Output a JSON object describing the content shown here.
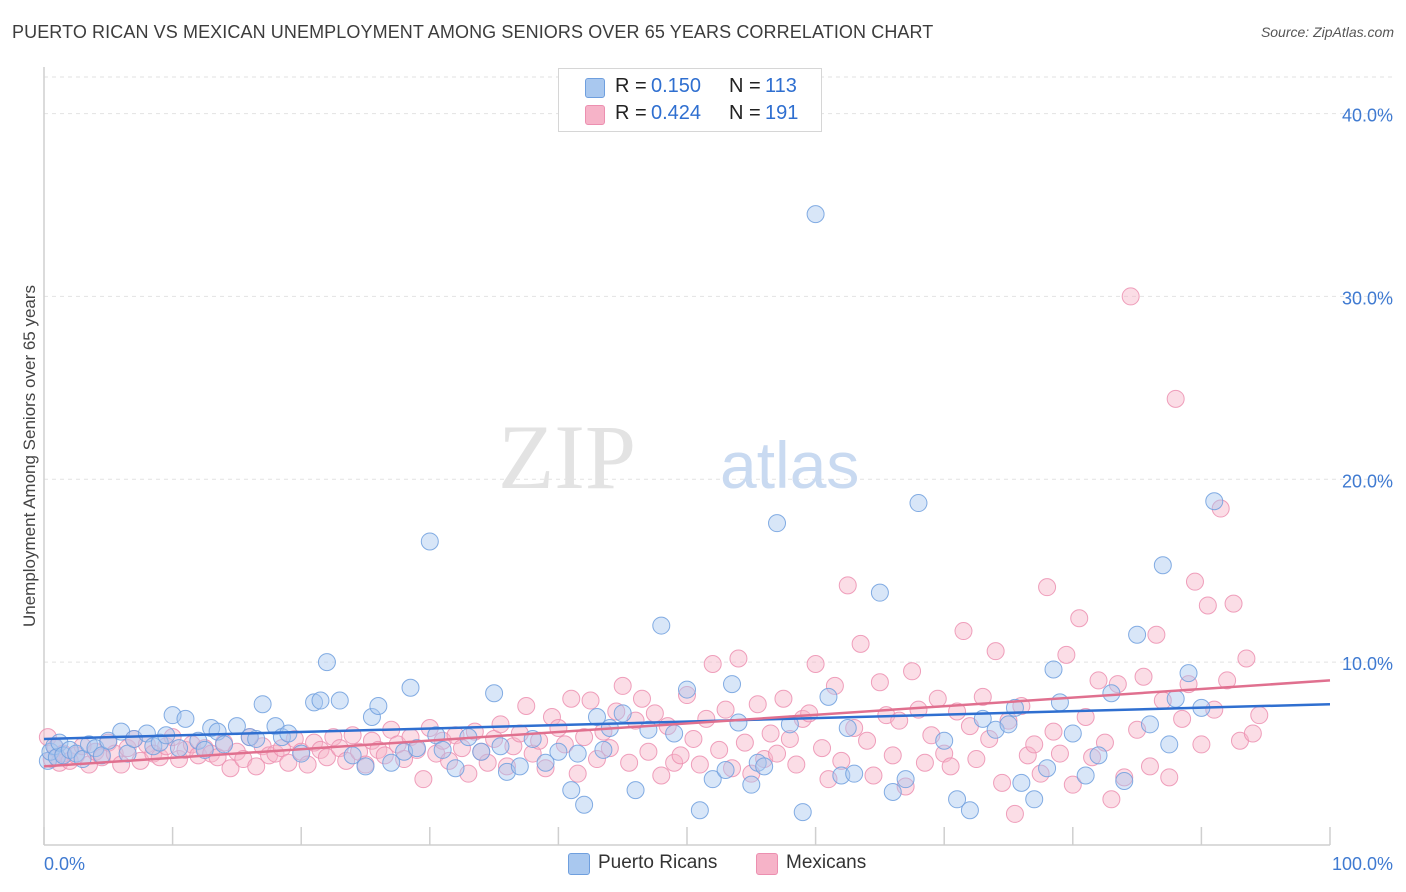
{
  "header": {
    "title": "PUERTO RICAN VS MEXICAN UNEMPLOYMENT AMONG SENIORS OVER 65 YEARS CORRELATION CHART",
    "source": "Source: ZipAtlas.com"
  },
  "watermark": {
    "zip": "ZIP",
    "atlas": "atlas"
  },
  "legend": {
    "rows": [
      {
        "r_label": "R =",
        "r_value": "0.150",
        "n_label": "N =",
        "n_value": "113"
      },
      {
        "r_label": "R =",
        "r_value": "0.424",
        "n_label": "N =",
        "n_value": "191"
      }
    ]
  },
  "bottom_legend": {
    "series0": "Puerto Ricans",
    "series1": "Mexicans"
  },
  "colors": {
    "blue_fill": "#a9c8ef",
    "blue_stroke": "#6f9fde",
    "blue_line": "#2f6fd0",
    "pink_fill": "#f6b3c8",
    "pink_stroke": "#ec8fb0",
    "pink_line": "#e0708f",
    "axis_label": "#3f7ad1",
    "grid": "#e2e2e2"
  },
  "chart_data": {
    "type": "scatter",
    "title": "PUERTO RICAN VS MEXICAN UNEMPLOYMENT AMONG SENIORS OVER 65 YEARS CORRELATION CHART",
    "xlabel": "",
    "ylabel": "Unemployment Among Seniors over 65 years",
    "xlim": [
      0,
      100
    ],
    "ylim": [
      0,
      42
    ],
    "x_tick_labels": [
      "0.0%",
      "100.0%"
    ],
    "y_ticks": [
      10,
      20,
      30,
      40
    ],
    "y_tick_labels": [
      "10.0%",
      "20.0%",
      "30.0%",
      "40.0%"
    ],
    "grid": true,
    "legend_position": "top-center",
    "series": [
      {
        "name": "Puerto Ricans",
        "R": 0.15,
        "N": 113,
        "trend": [
          [
            0,
            5.8
          ],
          [
            100,
            7.7
          ]
        ],
        "points": [
          [
            0.3,
            4.6
          ],
          [
            0.5,
            5.1
          ],
          [
            0.8,
            5.4
          ],
          [
            1,
            4.8
          ],
          [
            1.2,
            5.6
          ],
          [
            1.5,
            4.9
          ],
          [
            2,
            5.2
          ],
          [
            2.5,
            5.0
          ],
          [
            3,
            4.7
          ],
          [
            3.5,
            5.5
          ],
          [
            4,
            5.3
          ],
          [
            4.5,
            4.9
          ],
          [
            5,
            5.7
          ],
          [
            6,
            6.2
          ],
          [
            6.5,
            5.0
          ],
          [
            7,
            5.8
          ],
          [
            8,
            6.1
          ],
          [
            8.5,
            5.4
          ],
          [
            9,
            5.6
          ],
          [
            9.5,
            6.0
          ],
          [
            10,
            7.1
          ],
          [
            10.5,
            5.3
          ],
          [
            11,
            6.9
          ],
          [
            12,
            5.7
          ],
          [
            12.5,
            5.2
          ],
          [
            13,
            6.4
          ],
          [
            13.5,
            6.2
          ],
          [
            14,
            5.5
          ],
          [
            15,
            6.5
          ],
          [
            16,
            5.9
          ],
          [
            16.5,
            5.8
          ],
          [
            17,
            7.7
          ],
          [
            18,
            6.5
          ],
          [
            18.5,
            5.9
          ],
          [
            19,
            6.1
          ],
          [
            20,
            5.0
          ],
          [
            21,
            7.8
          ],
          [
            21.5,
            7.9
          ],
          [
            22,
            10.0
          ],
          [
            23,
            7.9
          ],
          [
            24,
            4.9
          ],
          [
            25,
            4.3
          ],
          [
            25.5,
            7.0
          ],
          [
            26,
            7.6
          ],
          [
            27,
            4.5
          ],
          [
            28,
            5.1
          ],
          [
            28.5,
            8.6
          ],
          [
            29,
            5.3
          ],
          [
            30,
            16.6
          ],
          [
            30.5,
            6.0
          ],
          [
            31,
            5.2
          ],
          [
            32,
            4.2
          ],
          [
            33,
            5.9
          ],
          [
            34,
            5.1
          ],
          [
            35,
            8.3
          ],
          [
            35.5,
            5.4
          ],
          [
            36,
            4.0
          ],
          [
            37,
            4.3
          ],
          [
            38,
            5.8
          ],
          [
            39,
            4.5
          ],
          [
            40,
            5.1
          ],
          [
            41,
            3.0
          ],
          [
            41.5,
            5.0
          ],
          [
            42,
            2.2
          ],
          [
            43,
            7.0
          ],
          [
            43.5,
            5.2
          ],
          [
            44,
            6.4
          ],
          [
            45,
            7.2
          ],
          [
            46,
            3.0
          ],
          [
            47,
            6.3
          ],
          [
            48,
            12.0
          ],
          [
            49,
            6.1
          ],
          [
            50,
            8.5
          ],
          [
            51,
            1.9
          ],
          [
            52,
            3.6
          ],
          [
            53,
            4.1
          ],
          [
            53.5,
            8.8
          ],
          [
            54,
            6.7
          ],
          [
            55,
            3.3
          ],
          [
            55.5,
            4.5
          ],
          [
            56,
            4.3
          ],
          [
            57,
            17.6
          ],
          [
            58,
            6.6
          ],
          [
            59,
            1.8
          ],
          [
            60,
            34.5
          ],
          [
            61,
            8.1
          ],
          [
            62,
            3.8
          ],
          [
            62.5,
            6.4
          ],
          [
            63,
            3.9
          ],
          [
            65,
            13.8
          ],
          [
            66,
            2.9
          ],
          [
            67,
            3.6
          ],
          [
            68,
            18.7
          ],
          [
            70,
            5.7
          ],
          [
            71,
            2.5
          ],
          [
            72,
            1.9
          ],
          [
            73,
            6.9
          ],
          [
            74,
            6.3
          ],
          [
            75,
            6.6
          ],
          [
            75.5,
            7.5
          ],
          [
            76,
            3.4
          ],
          [
            77,
            2.5
          ],
          [
            78,
            4.2
          ],
          [
            78.5,
            9.6
          ],
          [
            79,
            7.8
          ],
          [
            80,
            6.1
          ],
          [
            81,
            3.8
          ],
          [
            82,
            4.9
          ],
          [
            83,
            8.3
          ],
          [
            84,
            3.5
          ],
          [
            85,
            11.5
          ],
          [
            86,
            6.6
          ],
          [
            87,
            15.3
          ],
          [
            87.5,
            5.5
          ],
          [
            88,
            8.0
          ],
          [
            89,
            9.4
          ],
          [
            90,
            7.5
          ],
          [
            91,
            18.8
          ]
        ]
      },
      {
        "name": "Mexicans",
        "R": 0.424,
        "N": 191,
        "trend": [
          [
            0,
            4.3
          ],
          [
            100,
            9.0
          ]
        ],
        "points": [
          [
            0.3,
            5.9
          ],
          [
            0.6,
            4.7
          ],
          [
            0.9,
            5.3
          ],
          [
            1.2,
            4.5
          ],
          [
            1.5,
            5.0
          ],
          [
            2,
            4.6
          ],
          [
            2.5,
            4.9
          ],
          [
            3,
            5.4
          ],
          [
            3.5,
            4.4
          ],
          [
            4,
            5.1
          ],
          [
            4.5,
            4.8
          ],
          [
            5,
            5.6
          ],
          [
            5.5,
            5.0
          ],
          [
            6,
            4.4
          ],
          [
            6.5,
            5.3
          ],
          [
            7,
            5.8
          ],
          [
            7.5,
            4.6
          ],
          [
            8,
            5.5
          ],
          [
            8.5,
            5.0
          ],
          [
            9,
            4.8
          ],
          [
            9.5,
            5.4
          ],
          [
            10,
            5.9
          ],
          [
            10.5,
            4.7
          ],
          [
            11,
            5.2
          ],
          [
            11.5,
            5.5
          ],
          [
            12,
            4.9
          ],
          [
            12.5,
            5.3
          ],
          [
            13,
            5.0
          ],
          [
            13.5,
            4.8
          ],
          [
            14,
            5.6
          ],
          [
            14.5,
            4.2
          ],
          [
            15,
            5.1
          ],
          [
            15.5,
            4.7
          ],
          [
            16,
            5.9
          ],
          [
            16.5,
            4.3
          ],
          [
            17,
            5.4
          ],
          [
            17.5,
            4.9
          ],
          [
            18,
            5.0
          ],
          [
            18.5,
            5.3
          ],
          [
            19,
            4.5
          ],
          [
            19.5,
            5.8
          ],
          [
            20,
            5.1
          ],
          [
            20.5,
            4.4
          ],
          [
            21,
            5.6
          ],
          [
            21.5,
            5.2
          ],
          [
            22,
            4.8
          ],
          [
            22.5,
            5.9
          ],
          [
            23,
            5.3
          ],
          [
            23.5,
            4.6
          ],
          [
            24,
            6.0
          ],
          [
            24.5,
            5.1
          ],
          [
            25,
            4.4
          ],
          [
            25.5,
            5.7
          ],
          [
            26,
            5.2
          ],
          [
            26.5,
            4.9
          ],
          [
            27,
            6.3
          ],
          [
            27.5,
            5.5
          ],
          [
            28,
            4.7
          ],
          [
            28.5,
            5.9
          ],
          [
            29,
            5.2
          ],
          [
            29.5,
            3.6
          ],
          [
            30,
            6.4
          ],
          [
            30.5,
            5.0
          ],
          [
            31,
            5.7
          ],
          [
            31.5,
            4.6
          ],
          [
            32,
            6.0
          ],
          [
            32.5,
            5.3
          ],
          [
            33,
            3.9
          ],
          [
            33.5,
            6.2
          ],
          [
            34,
            5.1
          ],
          [
            34.5,
            4.5
          ],
          [
            35,
            5.8
          ],
          [
            35.5,
            6.6
          ],
          [
            36,
            4.3
          ],
          [
            36.5,
            5.4
          ],
          [
            37,
            6.1
          ],
          [
            37.5,
            7.6
          ],
          [
            38,
            5.0
          ],
          [
            38.5,
            5.7
          ],
          [
            39,
            4.2
          ],
          [
            39.5,
            7.0
          ],
          [
            40,
            6.4
          ],
          [
            40.5,
            5.5
          ],
          [
            41,
            8.0
          ],
          [
            41.5,
            3.9
          ],
          [
            42,
            5.9
          ],
          [
            42.5,
            7.9
          ],
          [
            43,
            4.7
          ],
          [
            43.5,
            6.2
          ],
          [
            44,
            5.3
          ],
          [
            44.5,
            7.3
          ],
          [
            45,
            8.7
          ],
          [
            45.5,
            4.5
          ],
          [
            46,
            6.8
          ],
          [
            46.5,
            8.0
          ],
          [
            47,
            5.1
          ],
          [
            47.5,
            7.2
          ],
          [
            48,
            3.8
          ],
          [
            48.5,
            6.5
          ],
          [
            49,
            4.5
          ],
          [
            49.5,
            4.9
          ],
          [
            50,
            8.2
          ],
          [
            50.5,
            5.8
          ],
          [
            51,
            4.4
          ],
          [
            51.5,
            6.9
          ],
          [
            52,
            9.9
          ],
          [
            52.5,
            5.2
          ],
          [
            53,
            7.4
          ],
          [
            53.5,
            4.2
          ],
          [
            54,
            10.2
          ],
          [
            54.5,
            5.6
          ],
          [
            55,
            3.9
          ],
          [
            55.5,
            7.7
          ],
          [
            56,
            4.7
          ],
          [
            56.5,
            6.1
          ],
          [
            57,
            5.0
          ],
          [
            57.5,
            8.0
          ],
          [
            58,
            5.8
          ],
          [
            58.5,
            4.4
          ],
          [
            59,
            6.9
          ],
          [
            59.5,
            7.2
          ],
          [
            60,
            9.9
          ],
          [
            60.5,
            5.3
          ],
          [
            61,
            3.6
          ],
          [
            61.5,
            8.7
          ],
          [
            62,
            4.6
          ],
          [
            62.5,
            14.2
          ],
          [
            63,
            6.4
          ],
          [
            63.5,
            11.0
          ],
          [
            64,
            5.7
          ],
          [
            64.5,
            3.8
          ],
          [
            65,
            8.9
          ],
          [
            65.5,
            7.1
          ],
          [
            66,
            4.9
          ],
          [
            66.5,
            6.8
          ],
          [
            67,
            3.2
          ],
          [
            67.5,
            9.5
          ],
          [
            68,
            7.4
          ],
          [
            68.5,
            4.5
          ],
          [
            69,
            6.0
          ],
          [
            69.5,
            8.0
          ],
          [
            70,
            5.0
          ],
          [
            70.5,
            4.3
          ],
          [
            71,
            7.3
          ],
          [
            71.5,
            11.7
          ],
          [
            72,
            6.5
          ],
          [
            72.5,
            4.7
          ],
          [
            73,
            8.1
          ],
          [
            73.5,
            5.8
          ],
          [
            74,
            10.6
          ],
          [
            74.5,
            3.4
          ],
          [
            75,
            6.8
          ],
          [
            75.5,
            1.7
          ],
          [
            76,
            7.6
          ],
          [
            76.5,
            4.9
          ],
          [
            77,
            5.5
          ],
          [
            77.5,
            3.9
          ],
          [
            78,
            14.1
          ],
          [
            78.5,
            6.2
          ],
          [
            79,
            5.0
          ],
          [
            79.5,
            10.4
          ],
          [
            80,
            3.3
          ],
          [
            80.5,
            12.4
          ],
          [
            81,
            7.0
          ],
          [
            81.5,
            4.8
          ],
          [
            82,
            9.0
          ],
          [
            82.5,
            5.6
          ],
          [
            83,
            2.5
          ],
          [
            83.5,
            8.8
          ],
          [
            84,
            3.7
          ],
          [
            84.5,
            30.0
          ],
          [
            85,
            6.3
          ],
          [
            85.5,
            9.2
          ],
          [
            86,
            4.3
          ],
          [
            86.5,
            11.5
          ],
          [
            87,
            7.9
          ],
          [
            87.5,
            3.7
          ],
          [
            88,
            24.4
          ],
          [
            88.5,
            6.9
          ],
          [
            89,
            8.8
          ],
          [
            89.5,
            14.4
          ],
          [
            90,
            5.5
          ],
          [
            90.5,
            13.1
          ],
          [
            91,
            7.4
          ],
          [
            91.5,
            18.4
          ],
          [
            92,
            9.0
          ],
          [
            92.5,
            13.2
          ],
          [
            93,
            5.7
          ],
          [
            93.5,
            10.2
          ],
          [
            94,
            6.1
          ],
          [
            94.5,
            7.1
          ]
        ]
      }
    ]
  }
}
